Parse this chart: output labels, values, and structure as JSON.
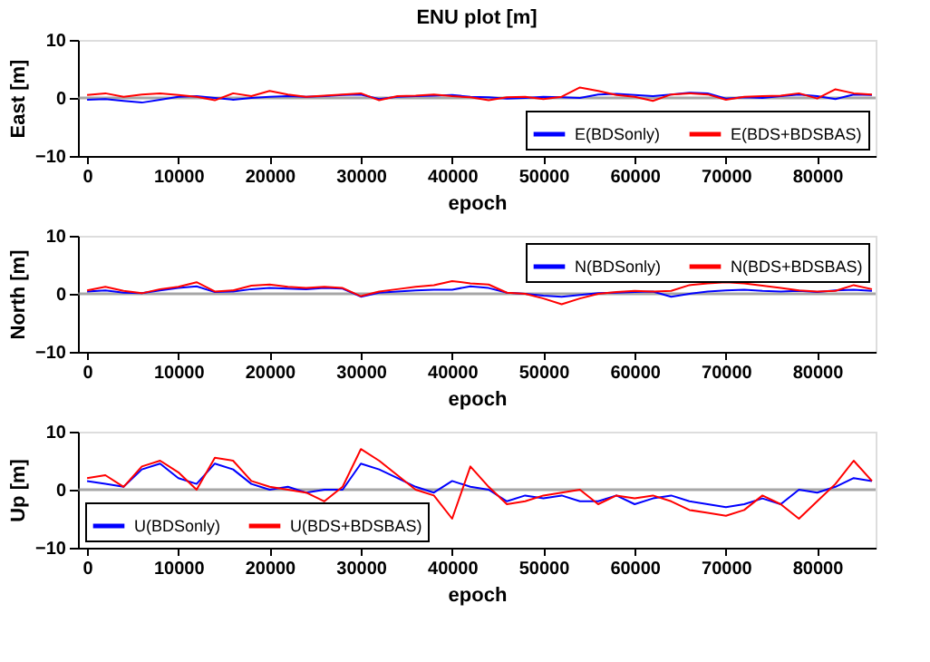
{
  "chart_data": [
    {
      "type": "line",
      "title": "ENU plot [m]",
      "xlabel": "epoch",
      "ylabel": "East [m]",
      "xlim": [
        -1000,
        86400
      ],
      "xticks": [
        0,
        10000,
        20000,
        30000,
        40000,
        50000,
        60000,
        70000,
        80000
      ],
      "ylim": [
        -10,
        10
      ],
      "yticks": [
        -10,
        0,
        10
      ],
      "grid": false,
      "legend": "bottom right",
      "ref_lines": [
        {
          "axis": "y",
          "value": 0,
          "color": "#808080"
        }
      ],
      "x": [
        0,
        2000,
        4000,
        6000,
        8000,
        10000,
        12000,
        14000,
        16000,
        18000,
        20000,
        22000,
        24000,
        26000,
        28000,
        30000,
        32000,
        34000,
        36000,
        38000,
        40000,
        42000,
        44000,
        46000,
        48000,
        50000,
        52000,
        54000,
        56000,
        58000,
        60000,
        62000,
        64000,
        66000,
        68000,
        70000,
        72000,
        74000,
        76000,
        78000,
        80000,
        82000,
        84000,
        86000
      ],
      "series": [
        {
          "name": "E(BDSonly)",
          "color": "#0000ff",
          "values": [
            -0.3,
            -0.2,
            -0.5,
            -0.8,
            -0.3,
            0.2,
            0.3,
            0,
            -0.3,
            0,
            0.2,
            0.3,
            0.2,
            0.3,
            0.5,
            0.6,
            -0.2,
            0.2,
            0.3,
            0.4,
            0.5,
            0.2,
            0.1,
            -0.1,
            0,
            0.2,
            0.1,
            0,
            0.6,
            0.7,
            0.5,
            0.3,
            0.6,
            0.9,
            0.8,
            -0.1,
            0.1,
            0,
            0.3,
            0.6,
            0.3,
            -0.2,
            0.6,
            0.5
          ]
        },
        {
          "name": "E(BDS+BDSBAS)",
          "color": "#ff0000",
          "values": [
            0.5,
            0.8,
            0.2,
            0.6,
            0.8,
            0.5,
            0.2,
            -0.4,
            0.8,
            0.3,
            1.2,
            0.6,
            0.2,
            0.4,
            0.6,
            0.8,
            -0.4,
            0.3,
            0.4,
            0.6,
            0.3,
            0.1,
            -0.4,
            0.1,
            0.2,
            -0.2,
            0.2,
            1.8,
            1.2,
            0.5,
            0.2,
            -0.5,
            0.6,
            0.8,
            0.6,
            -0.3,
            0.2,
            0.3,
            0.4,
            0.8,
            -0.1,
            1.5,
            0.8,
            0.6
          ]
        }
      ]
    },
    {
      "type": "line",
      "xlabel": "epoch",
      "ylabel": "North [m]",
      "xlim": [
        -1000,
        86400
      ],
      "xticks": [
        0,
        10000,
        20000,
        30000,
        40000,
        50000,
        60000,
        70000,
        80000
      ],
      "ylim": [
        -10,
        10
      ],
      "yticks": [
        -10,
        0,
        10
      ],
      "grid": false,
      "legend": "top right",
      "ref_lines": [
        {
          "axis": "y",
          "value": 0,
          "color": "#808080"
        }
      ],
      "x": [
        0,
        2000,
        4000,
        6000,
        8000,
        10000,
        12000,
        14000,
        16000,
        18000,
        20000,
        22000,
        24000,
        26000,
        28000,
        30000,
        32000,
        34000,
        36000,
        38000,
        40000,
        42000,
        44000,
        46000,
        48000,
        50000,
        52000,
        54000,
        56000,
        58000,
        60000,
        62000,
        64000,
        66000,
        68000,
        70000,
        72000,
        74000,
        76000,
        78000,
        80000,
        82000,
        84000,
        86000
      ],
      "series": [
        {
          "name": "N(BDSonly)",
          "color": "#0000ff",
          "values": [
            0.4,
            0.6,
            0.2,
            0.1,
            0.6,
            1.0,
            1.3,
            0.3,
            0.4,
            0.8,
            1.0,
            0.9,
            0.8,
            1.0,
            0.9,
            -0.5,
            0.2,
            0.4,
            0.6,
            0.7,
            0.7,
            1.3,
            1.0,
            0.2,
            0,
            -0.3,
            -0.5,
            -0.2,
            0.1,
            0.2,
            0.3,
            0.4,
            -0.5,
            0,
            0.4,
            0.6,
            0.7,
            0.5,
            0.4,
            0.5,
            0.3,
            0.6,
            0.7,
            0.5
          ]
        },
        {
          "name": "N(BDS+BDSBAS)",
          "color": "#ff0000",
          "values": [
            0.6,
            1.2,
            0.5,
            0.1,
            0.8,
            1.2,
            2.0,
            0.4,
            0.6,
            1.4,
            1.6,
            1.2,
            1.0,
            1.2,
            1.0,
            -0.4,
            0.4,
            0.8,
            1.2,
            1.5,
            2.2,
            1.8,
            1.6,
            0.2,
            0,
            -0.8,
            -1.8,
            -0.8,
            0,
            0.3,
            0.5,
            0.4,
            0.5,
            1.5,
            1.8,
            2.0,
            1.8,
            1.4,
            1.0,
            0.6,
            0.4,
            0.5,
            1.5,
            0.8
          ]
        }
      ]
    },
    {
      "type": "line",
      "xlabel": "epoch",
      "ylabel": "Up [m]",
      "xlim": [
        -1000,
        86400
      ],
      "xticks": [
        0,
        10000,
        20000,
        30000,
        40000,
        50000,
        60000,
        70000,
        80000
      ],
      "ylim": [
        -10,
        10
      ],
      "yticks": [
        -10,
        0,
        10
      ],
      "grid": false,
      "legend": "bottom left",
      "ref_lines": [
        {
          "axis": "y",
          "value": 0,
          "color": "#808080"
        }
      ],
      "x": [
        0,
        2000,
        4000,
        6000,
        8000,
        10000,
        12000,
        14000,
        16000,
        18000,
        20000,
        22000,
        24000,
        26000,
        28000,
        30000,
        32000,
        34000,
        36000,
        38000,
        40000,
        42000,
        44000,
        46000,
        48000,
        50000,
        52000,
        54000,
        56000,
        58000,
        60000,
        62000,
        64000,
        66000,
        68000,
        70000,
        72000,
        74000,
        76000,
        78000,
        80000,
        82000,
        84000,
        86000
      ],
      "series": [
        {
          "name": "U(BDSonly)",
          "color": "#0000ff",
          "values": [
            1.5,
            1.0,
            0.5,
            3.5,
            4.5,
            2.0,
            1.0,
            4.5,
            3.5,
            1.0,
            0,
            0.5,
            -0.5,
            0,
            0,
            4.5,
            3.5,
            2.0,
            0.5,
            -0.5,
            1.5,
            0.5,
            0,
            -2,
            -1,
            -1.5,
            -1,
            -2,
            -2,
            -1,
            -2.5,
            -1.5,
            -1,
            -2,
            -2.5,
            -3,
            -2.5,
            -1.5,
            -2.5,
            0,
            -0.5,
            0.5,
            2.0,
            1.5
          ]
        },
        {
          "name": "U(BDS+BDSBAS)",
          "color": "#ff0000",
          "values": [
            2.0,
            2.5,
            0.5,
            4,
            5,
            3,
            0,
            5.5,
            5,
            1.5,
            0.5,
            0,
            -0.5,
            -2,
            0.5,
            7,
            5,
            2.5,
            0,
            -1,
            -5,
            4,
            0.5,
            -2.5,
            -2,
            -1,
            -0.5,
            0,
            -2.5,
            -1,
            -1.5,
            -1,
            -2,
            -3.5,
            -4,
            -4.5,
            -3.5,
            -1,
            -2.5,
            -5,
            -2,
            1,
            5,
            1.5
          ]
        }
      ]
    }
  ]
}
